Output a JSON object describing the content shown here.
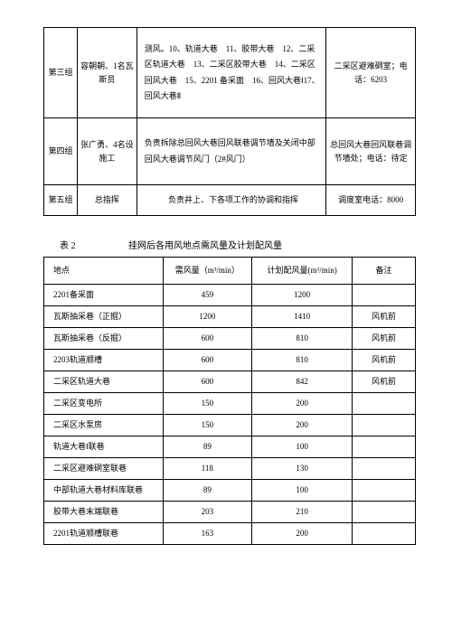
{
  "table1": {
    "rows": [
      {
        "group": "第三组",
        "person": "容朝朝、1名瓦斯员",
        "desc": "测风。10、轨道大巷　11、胶带大巷　12、二采区轨道大巷　13、二采区胶带大巷　14、二采区回风大巷　15、2201 备采面　16、回风大巷Ⅰ17、回风大巷Ⅱ",
        "right": "二采区避难硐室；电话：6203"
      },
      {
        "group": "第四组",
        "person": "张广勇、4名设施工",
        "desc": "负责拆除总回风大巷回风联巷调节墙及关闭中部回风大巷调节风门（2#风门）",
        "right": "总回风大巷回风联巷调节墙处；电话：待定"
      },
      {
        "group": "第五组",
        "person": "总指挥",
        "desc": "负责井上、下各项工作的协调和指挥",
        "right": "调度室电话：8000"
      }
    ]
  },
  "caption": {
    "label": "表 2",
    "title": "挂网后各用风地点需风量及计划配风量"
  },
  "table2": {
    "header": {
      "c1": "地点",
      "c2": "需风量（m³/min）",
      "c3": "计划配风量(m³/min)",
      "c4": "备注"
    },
    "rows": [
      {
        "c1": "2201备采面",
        "c2": "459",
        "c3": "1200",
        "c4": ""
      },
      {
        "c1": "瓦斯抽采巷（正掘）",
        "c2": "1200",
        "c3": "1410",
        "c4": "风机前"
      },
      {
        "c1": "瓦斯抽采巷（反掘）",
        "c2": "600",
        "c3": "810",
        "c4": "风机前"
      },
      {
        "c1": "2203轨道顺槽",
        "c2": "600",
        "c3": "810",
        "c4": "风机前"
      },
      {
        "c1": "二采区轨道大巷",
        "c2": "600",
        "c3": "842",
        "c4": "风机前"
      },
      {
        "c1": "二采区变电所",
        "c2": "150",
        "c3": "200",
        "c4": ""
      },
      {
        "c1": "二采区水泵房",
        "c2": "150",
        "c3": "200",
        "c4": ""
      },
      {
        "c1": "轨道大巷Ⅰ联巷",
        "c2": "89",
        "c3": "100",
        "c4": ""
      },
      {
        "c1": "二采区避难硐室联巷",
        "c2": "118",
        "c3": "130",
        "c4": ""
      },
      {
        "c1": "中部轨道大巷材料库联巷",
        "c2": "89",
        "c3": "100",
        "c4": ""
      },
      {
        "c1": "胶带大巷末端联巷",
        "c2": "203",
        "c3": "210",
        "c4": ""
      },
      {
        "c1": "2201轨道顺槽联巷",
        "c2": "163",
        "c3": "200",
        "c4": ""
      }
    ]
  }
}
